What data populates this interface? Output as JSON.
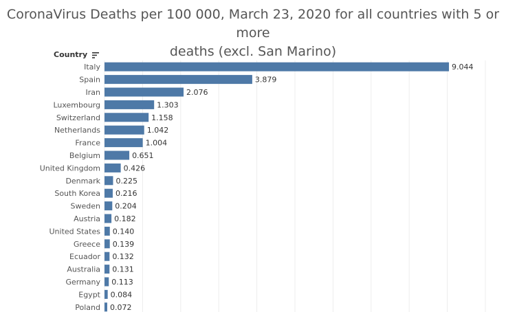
{
  "title_line1": "CoronaVirus Deaths per 100 000, March 23, 2020 for all countries with 5 or more",
  "title_line2": "deaths (excl. San Marino)",
  "axis_header": "Country",
  "colors": {
    "bar": "#4e79a7",
    "grid": "#ececec"
  },
  "chart_data": {
    "type": "bar",
    "orientation": "horizontal",
    "title": "CoronaVirus Deaths per 100 000, March 23, 2020 for all countries with 5 or more deaths (excl. San Marino)",
    "ylabel": "Country",
    "xlabel": "",
    "xlim": [
      0,
      10
    ],
    "grid": true,
    "categories": [
      "Italy",
      "Spain",
      "Iran",
      "Luxembourg",
      "Switzerland",
      "Netherlands",
      "France",
      "Belgium",
      "United Kingdom",
      "Denmark",
      "South Korea",
      "Sweden",
      "Austria",
      "United States",
      "Greece",
      "Ecuador",
      "Australia",
      "Germany",
      "Egypt",
      "Poland"
    ],
    "values": [
      9.044,
      3.879,
      2.076,
      1.303,
      1.158,
      1.042,
      1.004,
      0.651,
      0.426,
      0.225,
      0.216,
      0.204,
      0.182,
      0.14,
      0.139,
      0.132,
      0.131,
      0.113,
      0.084,
      0.072
    ],
    "value_labels": [
      "9.044",
      "3.879",
      "2.076",
      "1.303",
      "1.158",
      "1.042",
      "1.004",
      "0.651",
      "0.426",
      "0.225",
      "0.216",
      "0.204",
      "0.182",
      "0.140",
      "0.139",
      "0.132",
      "0.131",
      "0.113",
      "0.084",
      "0.072"
    ]
  }
}
